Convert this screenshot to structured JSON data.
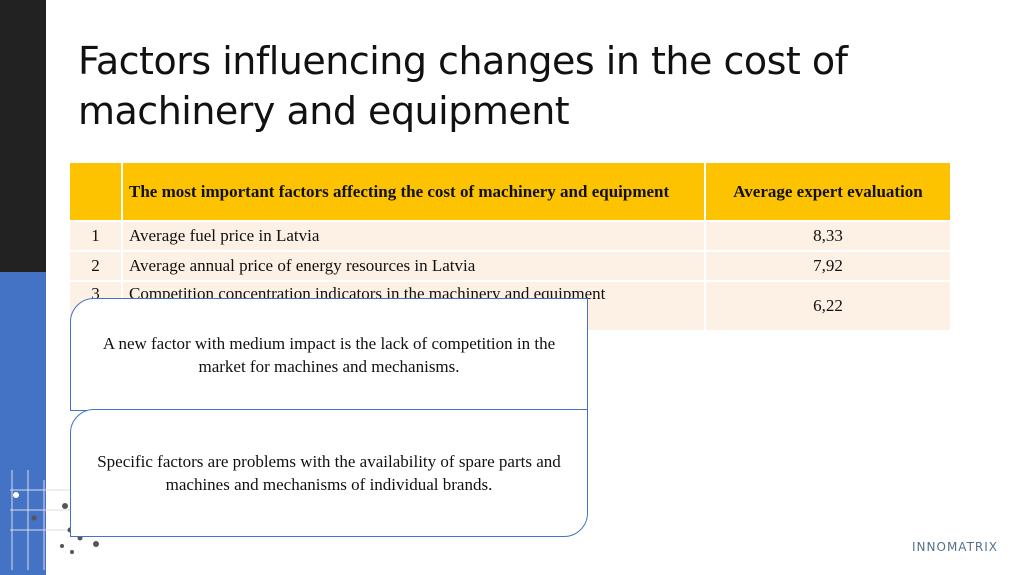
{
  "header": {
    "title": "Factors influencing changes in the cost of machinery and equipment"
  },
  "table": {
    "columns": [
      "",
      "The most important factors affecting the cost of machinery and equipment",
      "Average expert evaluation"
    ],
    "rows": [
      [
        "1",
        "Average fuel price in Latvia",
        "8,33"
      ],
      [
        "2",
        "Average annual price of energy resources in Latvia",
        "7,92"
      ],
      [
        "3",
        "Competition concentration indicators in the machinery and equipment",
        "6,22"
      ]
    ]
  },
  "callouts": [
    "A new factor with medium impact is the lack of competition in the market for machines and mechanisms.",
    "Specific factors are problems with the availability of spare parts and machines and mechanisms of individual brands."
  ],
  "logo": "INNOMATRIX"
}
